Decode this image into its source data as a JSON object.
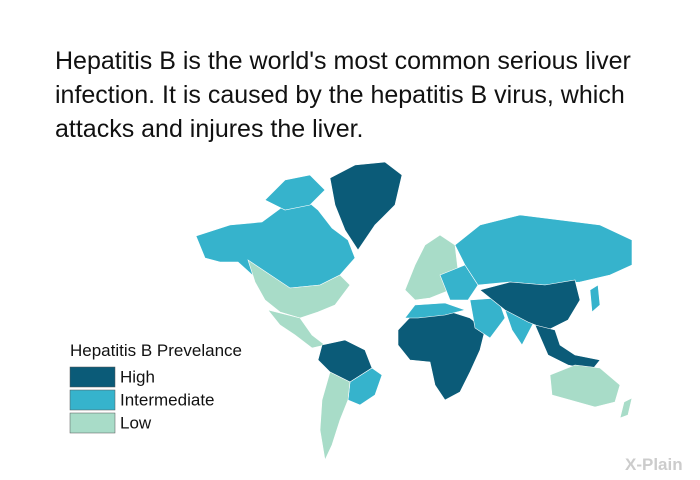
{
  "text": "Hepatitis B is the world's most common serious liver infection. It is caused by the hepatitis B virus, which attacks and injures the liver.",
  "legend": {
    "title": "Hepatitis B Prevelance",
    "items": [
      {
        "label": "High",
        "color": "#0b5b78"
      },
      {
        "label": "Intermediate",
        "color": "#36b3cc"
      },
      {
        "label": "Low",
        "color": "#a8dcc8"
      }
    ]
  },
  "logo": "X-Plain"
}
